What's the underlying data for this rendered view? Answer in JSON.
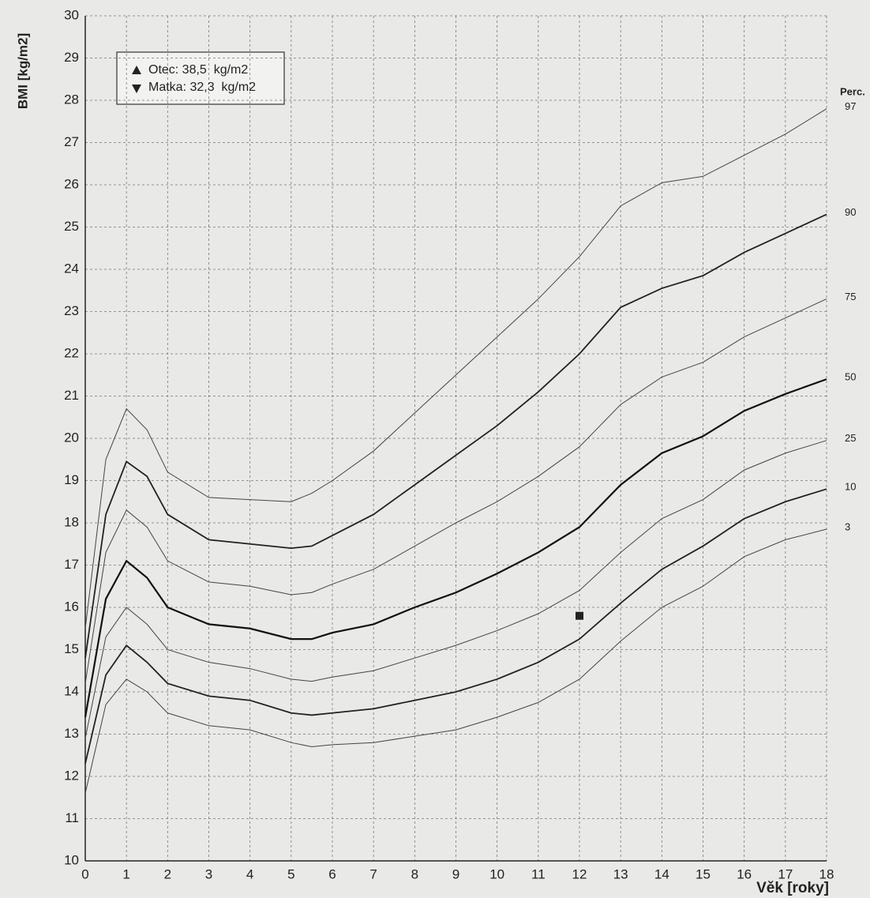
{
  "chart_data": {
    "type": "line",
    "y_label": "BMI [kg/m2]",
    "x_label": "Věk [roky]",
    "legend_title": "Perc.",
    "x": [
      0,
      0.5,
      1,
      1.5,
      2,
      3,
      4,
      5,
      5.5,
      6,
      7,
      8,
      9,
      10,
      11,
      12,
      13,
      14,
      15,
      16,
      17,
      18
    ],
    "series": [
      {
        "name": "97",
        "color": "#444",
        "line_width": 1,
        "values": [
          15.5,
          19.5,
          20.7,
          20.2,
          19.2,
          18.6,
          18.55,
          18.5,
          18.7,
          19.0,
          19.7,
          20.6,
          21.5,
          22.4,
          23.3,
          24.3,
          25.5,
          26.05,
          26.2,
          26.7,
          27.2,
          27.8
        ]
      },
      {
        "name": "90",
        "color": "#222",
        "line_width": 1.8,
        "values": [
          14.8,
          18.2,
          19.45,
          19.1,
          18.2,
          17.6,
          17.5,
          17.4,
          17.45,
          17.7,
          18.2,
          18.9,
          19.6,
          20.3,
          21.1,
          22.0,
          23.1,
          23.55,
          23.85,
          24.4,
          24.85,
          25.3
        ]
      },
      {
        "name": "75",
        "color": "#444",
        "line_width": 1,
        "values": [
          14.2,
          17.3,
          18.3,
          17.9,
          17.1,
          16.6,
          16.5,
          16.3,
          16.35,
          16.55,
          16.9,
          17.45,
          18.0,
          18.5,
          19.1,
          19.8,
          20.8,
          21.45,
          21.8,
          22.4,
          22.85,
          23.3
        ]
      },
      {
        "name": "50",
        "color": "#111",
        "line_width": 2.2,
        "values": [
          13.4,
          16.2,
          17.1,
          16.7,
          16.0,
          15.6,
          15.5,
          15.25,
          15.25,
          15.4,
          15.6,
          16.0,
          16.35,
          16.8,
          17.3,
          17.9,
          18.9,
          19.65,
          20.05,
          20.65,
          21.05,
          21.4
        ]
      },
      {
        "name": "25",
        "color": "#444",
        "line_width": 1,
        "values": [
          12.9,
          15.3,
          16.0,
          15.6,
          15.0,
          14.7,
          14.55,
          14.3,
          14.25,
          14.35,
          14.5,
          14.8,
          15.1,
          15.45,
          15.85,
          16.4,
          17.3,
          18.1,
          18.55,
          19.25,
          19.65,
          19.95
        ]
      },
      {
        "name": "10",
        "color": "#222",
        "line_width": 1.8,
        "values": [
          12.3,
          14.4,
          15.1,
          14.7,
          14.2,
          13.9,
          13.8,
          13.5,
          13.45,
          13.5,
          13.6,
          13.8,
          14.0,
          14.3,
          14.7,
          15.25,
          16.1,
          16.9,
          17.45,
          18.1,
          18.5,
          18.8
        ]
      },
      {
        "name": "3",
        "color": "#444",
        "line_width": 1,
        "values": [
          11.6,
          13.7,
          14.3,
          14.0,
          13.5,
          13.2,
          13.1,
          12.8,
          12.7,
          12.75,
          12.8,
          12.95,
          13.1,
          13.4,
          13.75,
          14.3,
          15.2,
          16.0,
          16.5,
          17.2,
          17.6,
          17.85
        ]
      }
    ],
    "points": {
      "color": "#222",
      "x": [
        12
      ],
      "values": [
        15.8
      ]
    },
    "annotations": [
      {
        "text": "Otec: 38,5  kg/m2",
        "marker": "up"
      },
      {
        "text": "Matka: 32,3  kg/m2",
        "marker": "down"
      }
    ],
    "xlim": [
      0,
      18
    ],
    "ylim": [
      10,
      30
    ],
    "xticks": [
      0,
      1,
      2,
      3,
      4,
      5,
      6,
      7,
      8,
      9,
      10,
      11,
      12,
      13,
      14,
      15,
      16,
      17,
      18
    ],
    "yticks": [
      10,
      11,
      12,
      13,
      14,
      15,
      16,
      17,
      18,
      19,
      20,
      21,
      22,
      23,
      24,
      25,
      26,
      27,
      28,
      29,
      30
    ],
    "grid": true
  }
}
